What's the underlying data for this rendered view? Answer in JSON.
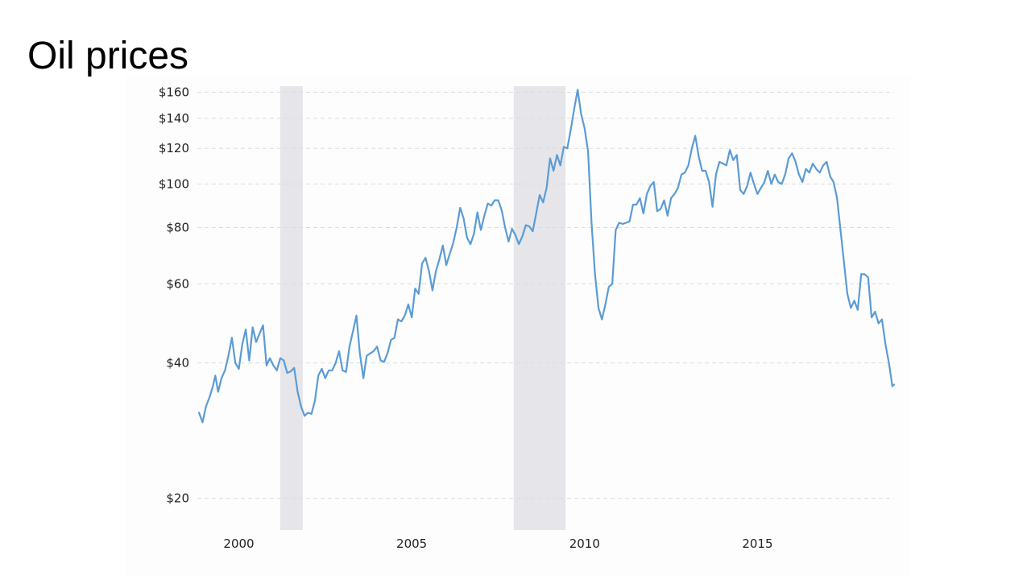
{
  "slide": {
    "title": "Oil prices"
  },
  "chart_data": {
    "type": "line",
    "title": "",
    "xlabel": "",
    "ylabel": "",
    "y_scale": "log",
    "x_ticks": [
      "2000",
      "2005",
      "2010",
      "2015"
    ],
    "y_ticks": [
      {
        "value": 20,
        "label": "$20"
      },
      {
        "value": 40,
        "label": "$40"
      },
      {
        "value": 60,
        "label": "$60"
      },
      {
        "value": 80,
        "label": "$80"
      },
      {
        "value": 100,
        "label": "$100"
      },
      {
        "value": 120,
        "label": "$120"
      },
      {
        "value": 140,
        "label": "$140"
      },
      {
        "value": 160,
        "label": "$160"
      }
    ],
    "grid": "horizontal dashed",
    "line_color": "#5b9bd5",
    "recession_color": "#e6e6ea",
    "recessions": [
      [
        2001.2,
        2001.85
      ],
      [
        2007.95,
        2009.45
      ]
    ],
    "xlim": [
      1998.8,
      2018.95
    ],
    "ylim": [
      17,
      165
    ],
    "series": [
      {
        "values": [
          [
            1998.85,
            31
          ],
          [
            1998.95,
            29.5
          ],
          [
            1999.05,
            32
          ],
          [
            1999.15,
            33.5
          ],
          [
            1999.25,
            35.5
          ],
          [
            1999.32,
            37.5
          ],
          [
            1999.4,
            34.5
          ],
          [
            1999.5,
            37
          ],
          [
            1999.6,
            38.5
          ],
          [
            1999.7,
            41.5
          ],
          [
            1999.8,
            45.5
          ],
          [
            1999.9,
            40
          ],
          [
            2000.0,
            38.8
          ],
          [
            2000.1,
            44
          ],
          [
            2000.2,
            47.5
          ],
          [
            2000.3,
            40.5
          ],
          [
            2000.4,
            48
          ],
          [
            2000.5,
            44.5
          ],
          [
            2000.6,
            46.5
          ],
          [
            2000.7,
            48.5
          ],
          [
            2000.8,
            39.5
          ],
          [
            2000.9,
            41
          ],
          [
            2001.0,
            39.5
          ],
          [
            2001.1,
            38.5
          ],
          [
            2001.2,
            41
          ],
          [
            2001.3,
            40.5
          ],
          [
            2001.4,
            38
          ],
          [
            2001.5,
            38.3
          ],
          [
            2001.6,
            39
          ],
          [
            2001.7,
            34.5
          ],
          [
            2001.8,
            32
          ],
          [
            2001.9,
            30.5
          ],
          [
            2002.0,
            31
          ],
          [
            2002.1,
            30.8
          ],
          [
            2002.2,
            33
          ],
          [
            2002.3,
            37.5
          ],
          [
            2002.4,
            38.8
          ],
          [
            2002.5,
            37
          ],
          [
            2002.6,
            38.5
          ],
          [
            2002.7,
            38.5
          ],
          [
            2002.8,
            40
          ],
          [
            2002.9,
            42.5
          ],
          [
            2003.0,
            38.5
          ],
          [
            2003.1,
            38.2
          ],
          [
            2003.2,
            43.5
          ],
          [
            2003.3,
            47
          ],
          [
            2003.4,
            51
          ],
          [
            2003.5,
            42
          ],
          [
            2003.6,
            37
          ],
          [
            2003.7,
            41.5
          ],
          [
            2003.8,
            42
          ],
          [
            2003.9,
            42.5
          ],
          [
            2004.0,
            43.5
          ],
          [
            2004.1,
            40.5
          ],
          [
            2004.2,
            40.2
          ],
          [
            2004.3,
            42
          ],
          [
            2004.4,
            45
          ],
          [
            2004.5,
            45.5
          ],
          [
            2004.6,
            50
          ],
          [
            2004.7,
            49.5
          ],
          [
            2004.8,
            51
          ],
          [
            2004.9,
            54
          ],
          [
            2005.0,
            50.5
          ],
          [
            2005.1,
            58.5
          ],
          [
            2005.2,
            57
          ],
          [
            2005.3,
            66.5
          ],
          [
            2005.4,
            68.5
          ],
          [
            2005.5,
            64
          ],
          [
            2005.6,
            58
          ],
          [
            2005.7,
            64
          ],
          [
            2005.8,
            68
          ],
          [
            2005.9,
            73
          ],
          [
            2006.0,
            66
          ],
          [
            2006.1,
            70
          ],
          [
            2006.2,
            74
          ],
          [
            2006.3,
            80
          ],
          [
            2006.4,
            88.5
          ],
          [
            2006.5,
            84
          ],
          [
            2006.6,
            76
          ],
          [
            2006.7,
            73.5
          ],
          [
            2006.8,
            77.5
          ],
          [
            2006.9,
            86.5
          ],
          [
            2007.0,
            79
          ],
          [
            2007.1,
            85
          ],
          [
            2007.2,
            90.5
          ],
          [
            2007.3,
            89.5
          ],
          [
            2007.4,
            92
          ],
          [
            2007.5,
            92
          ],
          [
            2007.6,
            87.5
          ],
          [
            2007.7,
            80
          ],
          [
            2007.8,
            74.5
          ],
          [
            2007.9,
            79.5
          ],
          [
            2008.0,
            77
          ],
          [
            2008.1,
            73.5
          ],
          [
            2008.2,
            76.5
          ],
          [
            2008.3,
            81
          ],
          [
            2008.4,
            80.5
          ],
          [
            2008.5,
            78.5
          ],
          [
            2008.6,
            86
          ],
          [
            2008.7,
            94.5
          ],
          [
            2008.8,
            91
          ],
          [
            2008.9,
            98
          ],
          [
            2009.0,
            114
          ],
          [
            2009.1,
            107
          ],
          [
            2009.2,
            116
          ],
          [
            2009.3,
            110
          ],
          [
            2009.4,
            121
          ],
          [
            2009.5,
            120
          ],
          [
            2009.6,
            132
          ],
          [
            2009.7,
            147
          ],
          [
            2009.8,
            162
          ],
          [
            2009.9,
            143
          ],
          [
            2010.0,
            133
          ],
          [
            2010.1,
            118
          ],
          [
            2010.2,
            82
          ],
          [
            2010.3,
            63
          ],
          [
            2010.4,
            53
          ],
          [
            2010.5,
            50
          ],
          [
            2010.6,
            54
          ],
          [
            2010.7,
            59
          ],
          [
            2010.8,
            60
          ],
          [
            2010.9,
            79
          ],
          [
            2011.0,
            82
          ],
          [
            2011.1,
            81.5
          ],
          [
            2011.2,
            82
          ],
          [
            2011.3,
            82.5
          ],
          [
            2011.4,
            90
          ],
          [
            2011.5,
            90
          ],
          [
            2011.6,
            93
          ],
          [
            2011.7,
            86
          ],
          [
            2011.8,
            95
          ],
          [
            2011.9,
            99
          ],
          [
            2012.0,
            101
          ],
          [
            2012.1,
            87
          ],
          [
            2012.2,
            88
          ],
          [
            2012.3,
            92
          ],
          [
            2012.4,
            85
          ],
          [
            2012.5,
            93
          ],
          [
            2012.6,
            95
          ],
          [
            2012.7,
            98
          ],
          [
            2012.8,
            105
          ],
          [
            2012.9,
            106
          ],
          [
            2013.0,
            110
          ],
          [
            2013.1,
            120
          ],
          [
            2013.2,
            128
          ],
          [
            2013.3,
            115
          ],
          [
            2013.4,
            107
          ],
          [
            2013.5,
            107
          ],
          [
            2013.6,
            101
          ],
          [
            2013.7,
            89
          ],
          [
            2013.8,
            105
          ],
          [
            2013.9,
            112
          ],
          [
            2014.0,
            111
          ],
          [
            2014.1,
            110
          ],
          [
            2014.2,
            119
          ],
          [
            2014.3,
            113
          ],
          [
            2014.4,
            116
          ],
          [
            2014.5,
            97
          ],
          [
            2014.6,
            95
          ],
          [
            2014.7,
            99
          ],
          [
            2014.8,
            106
          ],
          [
            2014.9,
            100
          ],
          [
            2015.0,
            95
          ],
          [
            2015.1,
            98
          ],
          [
            2015.2,
            101
          ],
          [
            2015.3,
            107
          ],
          [
            2015.4,
            100
          ],
          [
            2015.5,
            105
          ],
          [
            2015.6,
            101
          ],
          [
            2015.7,
            100
          ],
          [
            2015.8,
            105
          ],
          [
            2015.9,
            114
          ],
          [
            2016.0,
            117
          ],
          [
            2016.1,
            112
          ],
          [
            2016.2,
            105
          ],
          [
            2016.3,
            101
          ],
          [
            2016.4,
            108
          ],
          [
            2016.5,
            106
          ],
          [
            2016.6,
            111
          ],
          [
            2016.7,
            108
          ],
          [
            2016.8,
            106
          ],
          [
            2016.9,
            110
          ],
          [
            2017.0,
            112
          ],
          [
            2017.1,
            104
          ],
          [
            2017.2,
            101
          ],
          [
            2017.3,
            93
          ],
          [
            2017.4,
            79
          ],
          [
            2017.5,
            67
          ],
          [
            2017.6,
            57
          ],
          [
            2017.7,
            53
          ],
          [
            2017.8,
            55
          ],
          [
            2017.9,
            52.5
          ],
          [
            2018.0,
            63
          ],
          [
            2018.1,
            63
          ],
          [
            2018.2,
            62
          ],
          [
            2018.3,
            50.5
          ],
          [
            2018.4,
            52
          ],
          [
            2018.5,
            49
          ],
          [
            2018.6,
            50
          ],
          [
            2018.7,
            44
          ],
          [
            2018.8,
            40
          ],
          [
            2018.9,
            35.5
          ],
          [
            2018.95,
            35.8
          ]
        ]
      }
    ]
  }
}
